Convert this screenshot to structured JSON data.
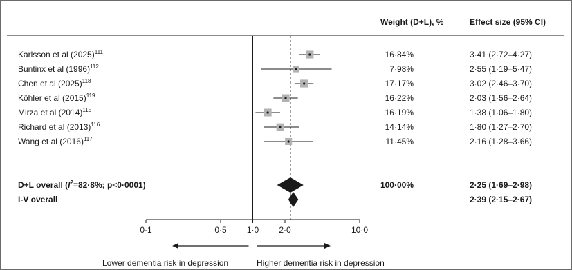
{
  "chart_data": {
    "type": "forest",
    "headers": {
      "weight": "Weight (D+L), %",
      "effect": "Effect size (95% CI)"
    },
    "x_scale": "log",
    "xlim": [
      0.1,
      10.0
    ],
    "ticks": [
      {
        "value": 0.1,
        "label": "0·1"
      },
      {
        "value": 0.5,
        "label": "0·5"
      },
      {
        "value": 1.0,
        "label": "1·0"
      },
      {
        "value": 2.0,
        "label": "2·0"
      },
      {
        "value": 10.0,
        "label": "10·0"
      }
    ],
    "null_line": 1.0,
    "overall_line": 2.25,
    "studies": [
      {
        "name": "Karlsson et al (2025)",
        "ref": "111",
        "weight_pct": 16.84,
        "weight": "16·84%",
        "est": 3.41,
        "lo": 2.72,
        "hi": 4.27,
        "effect": "3·41 (2·72–4·27)"
      },
      {
        "name": "Buntinx et al (1996)",
        "ref": "112",
        "weight_pct": 7.98,
        "weight": "7·98%",
        "est": 2.55,
        "lo": 1.19,
        "hi": 5.47,
        "effect": "2·55 (1·19–5·47)"
      },
      {
        "name": "Chen et al (2025)",
        "ref": "118",
        "weight_pct": 17.17,
        "weight": "17·17%",
        "est": 3.02,
        "lo": 2.46,
        "hi": 3.7,
        "effect": "3·02 (2·46–3·70)"
      },
      {
        "name": "Köhler et al (2015)",
        "ref": "119",
        "weight_pct": 16.22,
        "weight": "16·22%",
        "est": 2.03,
        "lo": 1.56,
        "hi": 2.64,
        "effect": "2·03 (1·56–2·64)"
      },
      {
        "name": "Mirza et al (2014)",
        "ref": "115",
        "weight_pct": 16.19,
        "weight": "16·19%",
        "est": 1.38,
        "lo": 1.06,
        "hi": 1.8,
        "effect": "1·38 (1·06–1·80)"
      },
      {
        "name": "Richard et al (2013)",
        "ref": "116",
        "weight_pct": 14.14,
        "weight": "14·14%",
        "est": 1.8,
        "lo": 1.27,
        "hi": 2.7,
        "effect": "1·80 (1·27–2·70)"
      },
      {
        "name": "Wang et al (2016)",
        "ref": "117",
        "weight_pct": 11.45,
        "weight": "11·45%",
        "est": 2.16,
        "lo": 1.28,
        "hi": 3.66,
        "effect": "2·16 (1·28–3·66)"
      }
    ],
    "pooled": [
      {
        "name_prefix": "D+L overall (",
        "name_italic": "I",
        "name_sup": "2",
        "name_suffix": "=82·8%; p<0·0001)",
        "weight": "100·00%",
        "est": 2.25,
        "lo": 1.69,
        "hi": 2.98,
        "effect": "2·25 (1·69–2·98)"
      },
      {
        "name_prefix": "I-V overall",
        "name_italic": "",
        "name_sup": "",
        "name_suffix": "",
        "weight": "",
        "est": 2.39,
        "lo": 2.15,
        "hi": 2.67,
        "effect": "2·39 (2·15–2·67)"
      }
    ],
    "direction_labels": {
      "left": "Lower dementia risk in depression",
      "right": "Higher dementia risk in depression"
    },
    "colors": {
      "box": "#b3b3b3",
      "line": "#1a1a1a",
      "diamond": "#1a1a1a",
      "frame": "#6b6b6b"
    }
  }
}
